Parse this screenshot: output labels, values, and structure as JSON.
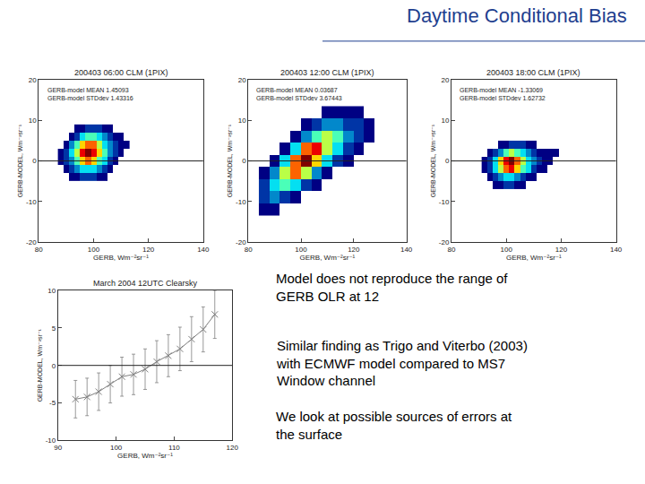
{
  "slide_title": "Daytime Conditional Bias",
  "text_paragraphs": [
    [
      "Model does not reproduce the range of",
      "GERB OLR at 12"
    ],
    [
      "Similar finding as Trigo and Viterbo (2003)",
      "with ECMWF model compared to MS7",
      "Window channel"
    ],
    [
      "We look at possible sources of errors at",
      "the surface"
    ]
  ],
  "chart_data": [
    {
      "type": "density_scatter",
      "title": "200403 06:00 CLM (1PIX)",
      "annotations": [
        "GERB-model MEAN 1.45093",
        "GERB-model STDdev 1.43316"
      ],
      "x_label": "GERB, Wm⁻²sr⁻¹",
      "y_label": "GERB-MODEL, Wm⁻²sr⁻¹",
      "xlim": [
        80,
        140
      ],
      "xticks": [
        80,
        100,
        120,
        140
      ],
      "ylim": [
        -20,
        20
      ],
      "yticks": [
        -20,
        -10,
        0,
        10,
        20
      ],
      "reference_line": 0,
      "density": {
        "x": [
          88,
          90,
          92,
          94,
          96,
          98,
          100,
          102,
          104,
          106,
          108,
          110,
          112
        ],
        "y": [
          -4,
          -2,
          0,
          2,
          4,
          6,
          8
        ],
        "z": [
          [
            null,
            null,
            1,
            1,
            2,
            2,
            2,
            1,
            1,
            null,
            null,
            null,
            null
          ],
          [
            null,
            1,
            2,
            3,
            4,
            4,
            4,
            3,
            2,
            1,
            null,
            null,
            null
          ],
          [
            1,
            2,
            3,
            5,
            7,
            8,
            7,
            5,
            4,
            2,
            1,
            null,
            null
          ],
          [
            1,
            2,
            4,
            6,
            9,
            10,
            9,
            7,
            5,
            3,
            2,
            1,
            null
          ],
          [
            null,
            1,
            3,
            5,
            7,
            8,
            8,
            6,
            4,
            3,
            2,
            1,
            1
          ],
          [
            null,
            null,
            1,
            2,
            4,
            5,
            5,
            4,
            3,
            2,
            1,
            1,
            null
          ],
          [
            null,
            null,
            null,
            1,
            1,
            2,
            2,
            2,
            1,
            1,
            null,
            null,
            null
          ]
        ]
      }
    },
    {
      "type": "density_scatter",
      "title": "200403 12:00 CLM (1PIX)",
      "annotations": [
        "GERB-model MEAN 0.03687",
        "GERB-model STDdev 3.67443"
      ],
      "x_label": "GERB, Wm⁻²sr⁻¹",
      "y_label": "GERB-MODEL, Wm⁻²sr⁻¹",
      "xlim": [
        80,
        140
      ],
      "xticks": [
        80,
        100,
        120,
        140
      ],
      "ylim": [
        -20,
        20
      ],
      "yticks": [
        -20,
        -10,
        0,
        10,
        20
      ],
      "reference_line": 0,
      "density": {
        "x": [
          86,
          90,
          94,
          98,
          102,
          106,
          110,
          114,
          118,
          122,
          126
        ],
        "y": [
          -12,
          -9,
          -6,
          -3,
          0,
          3,
          6,
          9,
          12
        ],
        "z": [
          [
            1,
            1,
            null,
            null,
            null,
            null,
            null,
            null,
            null,
            null,
            null
          ],
          [
            2,
            3,
            2,
            1,
            null,
            null,
            null,
            null,
            null,
            null,
            null
          ],
          [
            2,
            4,
            5,
            4,
            2,
            1,
            null,
            null,
            null,
            null,
            null
          ],
          [
            1,
            3,
            6,
            8,
            6,
            3,
            1,
            null,
            null,
            null,
            null
          ],
          [
            null,
            1,
            4,
            8,
            10,
            7,
            4,
            2,
            1,
            null,
            null
          ],
          [
            null,
            null,
            1,
            4,
            8,
            9,
            6,
            4,
            2,
            1,
            null
          ],
          [
            null,
            null,
            null,
            1,
            3,
            5,
            6,
            5,
            3,
            2,
            1
          ],
          [
            null,
            null,
            null,
            null,
            1,
            2,
            3,
            3,
            2,
            2,
            1
          ],
          [
            null,
            null,
            null,
            null,
            null,
            null,
            1,
            1,
            1,
            1,
            null
          ]
        ]
      }
    },
    {
      "type": "density_scatter",
      "title": "200403 18:00 CLM (1PIX)",
      "annotations": [
        "GERB-model MEAN -1.33069",
        "GERB-model STDdev 1.62732"
      ],
      "x_label": "GERB, Wm⁻²sr⁻¹",
      "y_label": "GERB-MODEL, Wm⁻²sr⁻¹",
      "xlim": [
        80,
        140
      ],
      "xticks": [
        80,
        100,
        120,
        140
      ],
      "ylim": [
        -20,
        20
      ],
      "yticks": [
        -20,
        -10,
        0,
        10,
        20
      ],
      "reference_line": 0,
      "density": {
        "x": [
          92,
          94,
          96,
          98,
          100,
          102,
          104,
          106,
          108,
          110,
          112,
          114,
          116,
          118,
          120
        ],
        "y": [
          -6,
          -4,
          -2,
          0,
          2,
          4
        ],
        "z": [
          [
            null,
            null,
            1,
            1,
            2,
            2,
            1,
            1,
            null,
            null,
            null,
            null,
            null,
            null,
            null
          ],
          [
            null,
            1,
            2,
            3,
            4,
            4,
            3,
            2,
            1,
            1,
            null,
            null,
            null,
            null,
            null
          ],
          [
            1,
            2,
            4,
            6,
            8,
            9,
            7,
            5,
            4,
            2,
            1,
            1,
            null,
            null,
            null
          ],
          [
            1,
            2,
            4,
            7,
            9,
            10,
            8,
            6,
            4,
            3,
            2,
            1,
            1,
            null,
            null
          ],
          [
            null,
            1,
            2,
            3,
            5,
            6,
            5,
            4,
            3,
            2,
            1,
            1,
            1,
            1,
            null
          ],
          [
            null,
            null,
            null,
            1,
            1,
            2,
            2,
            2,
            1,
            1,
            null,
            null,
            null,
            null,
            null
          ]
        ]
      }
    },
    {
      "type": "line",
      "title": "March 2004 12UTC Clearsky",
      "x_label": "GERB, Wm⁻²sr⁻¹",
      "y_label": "GERB-MODEL, Wm⁻²sr⁻¹",
      "x": [
        93,
        95,
        97,
        99,
        101,
        103,
        105,
        107,
        109,
        111,
        113,
        115,
        117
      ],
      "values": [
        -4.5,
        -4.2,
        -3.5,
        -2.5,
        -1.5,
        -1.2,
        -0.5,
        0.5,
        1.3,
        2.2,
        3.5,
        4.8,
        6.8
      ],
      "errors": [
        2.5,
        2.5,
        2.5,
        2.5,
        2.6,
        2.7,
        2.7,
        2.8,
        2.8,
        2.9,
        3.0,
        3.0,
        3.2
      ],
      "color": "#808080",
      "marker": "x",
      "xlim": [
        90,
        120
      ],
      "xticks": [
        90,
        100,
        110,
        120
      ],
      "ylim": [
        -10,
        10
      ],
      "yticks": [
        -10,
        -5,
        0,
        5,
        10
      ],
      "reference_line": 0
    }
  ]
}
